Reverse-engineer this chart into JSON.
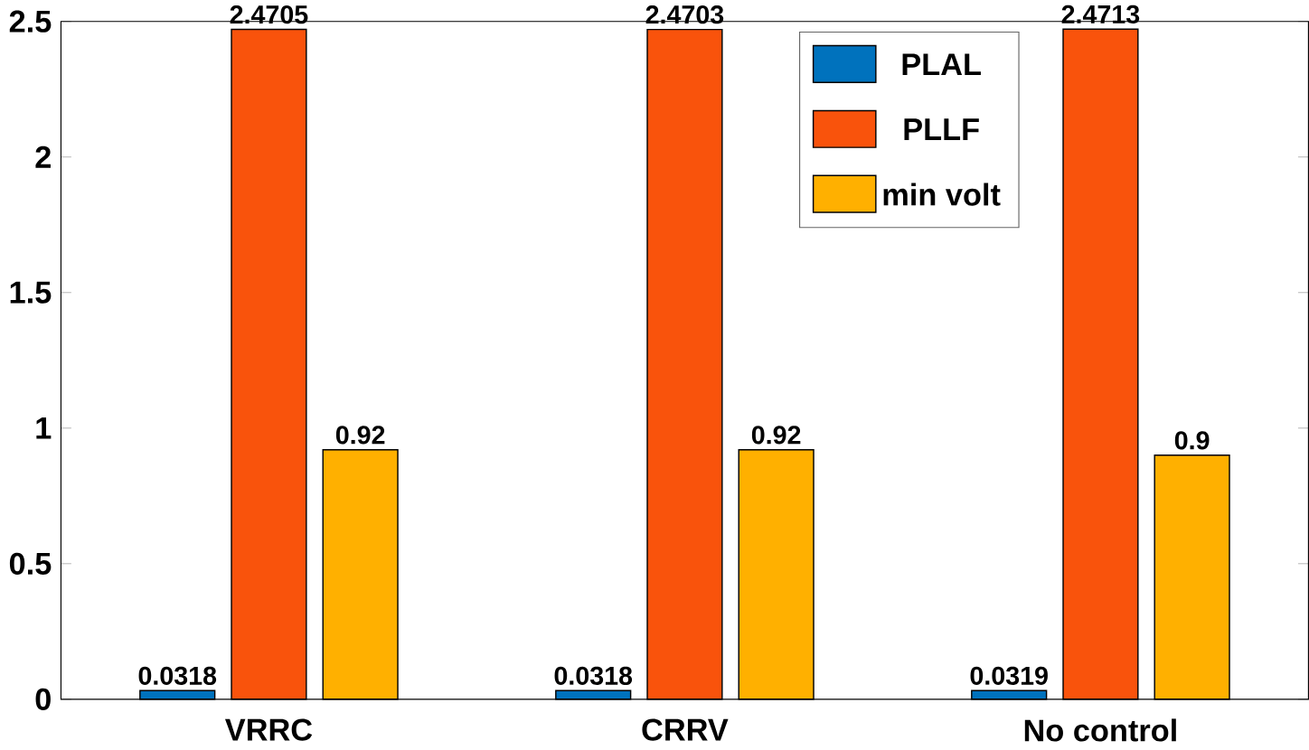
{
  "chart_data": {
    "type": "bar",
    "categories": [
      "VRRC",
      "CRRV",
      "No control"
    ],
    "series": [
      {
        "name": "PLAL",
        "color": "#0072bd",
        "values": [
          0.0318,
          0.0318,
          0.0319
        ],
        "value_labels": [
          "0.0318",
          "0.0318",
          "0.0319"
        ]
      },
      {
        "name": "PLLF",
        "color": "#f9530c",
        "values": [
          2.4705,
          2.4703,
          2.4713
        ],
        "value_labels": [
          "2.4705",
          "2.4703",
          "2.4713"
        ]
      },
      {
        "name": "min volt",
        "color": "#ffb000",
        "values": [
          0.92,
          0.92,
          0.9
        ],
        "value_labels": [
          "0.92",
          "0.92",
          "0.9"
        ]
      }
    ],
    "ylim": [
      0,
      2.5
    ],
    "yticks": [
      0,
      0.5,
      1,
      1.5,
      2,
      2.5
    ],
    "legend": "top",
    "grid": false
  }
}
